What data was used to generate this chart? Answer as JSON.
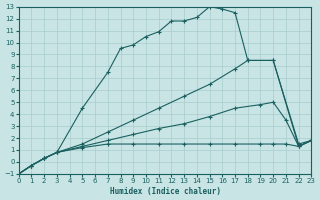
{
  "xlabel": "Humidex (Indice chaleur)",
  "bg_color": "#c8e4e4",
  "grid_color": "#a8cccc",
  "line_color": "#1a6060",
  "xlim": [
    0,
    23
  ],
  "ylim": [
    -1,
    13
  ],
  "yticks": [
    -1,
    0,
    1,
    2,
    3,
    4,
    5,
    6,
    7,
    8,
    9,
    10,
    11,
    12,
    13
  ],
  "xticks": [
    0,
    1,
    2,
    3,
    4,
    5,
    6,
    7,
    8,
    9,
    10,
    11,
    12,
    13,
    14,
    15,
    16,
    17,
    18,
    19,
    20,
    21,
    22,
    23
  ],
  "lines": [
    {
      "x": [
        0,
        1,
        2,
        3,
        5,
        7,
        8,
        9,
        10,
        11,
        12,
        13,
        14,
        15,
        16,
        17,
        18,
        20,
        22,
        23
      ],
      "y": [
        -1,
        -0.3,
        0.3,
        0.8,
        4.5,
        7.5,
        9.5,
        9.8,
        10.5,
        10.9,
        11.8,
        11.8,
        12.1,
        13.0,
        12.8,
        12.5,
        8.5,
        8.5,
        1.3,
        1.8
      ]
    },
    {
      "x": [
        0,
        1,
        2,
        3,
        5,
        7,
        9,
        11,
        13,
        15,
        17,
        18,
        20,
        22,
        23
      ],
      "y": [
        -1,
        -0.3,
        0.3,
        0.8,
        1.5,
        2.5,
        3.5,
        4.5,
        5.5,
        6.5,
        7.8,
        8.5,
        8.5,
        1.5,
        1.8
      ]
    },
    {
      "x": [
        0,
        1,
        2,
        3,
        5,
        7,
        9,
        11,
        13,
        15,
        17,
        19,
        20,
        21,
        22,
        23
      ],
      "y": [
        -1,
        -0.3,
        0.3,
        0.8,
        1.3,
        1.8,
        2.3,
        2.8,
        3.2,
        3.8,
        4.5,
        4.8,
        5.0,
        3.5,
        1.3,
        1.8
      ]
    },
    {
      "x": [
        0,
        1,
        2,
        3,
        5,
        7,
        9,
        11,
        13,
        15,
        17,
        19,
        20,
        21,
        22,
        23
      ],
      "y": [
        -1,
        -0.3,
        0.3,
        0.8,
        1.2,
        1.5,
        1.5,
        1.5,
        1.5,
        1.5,
        1.5,
        1.5,
        1.5,
        1.5,
        1.3,
        1.8
      ]
    }
  ]
}
